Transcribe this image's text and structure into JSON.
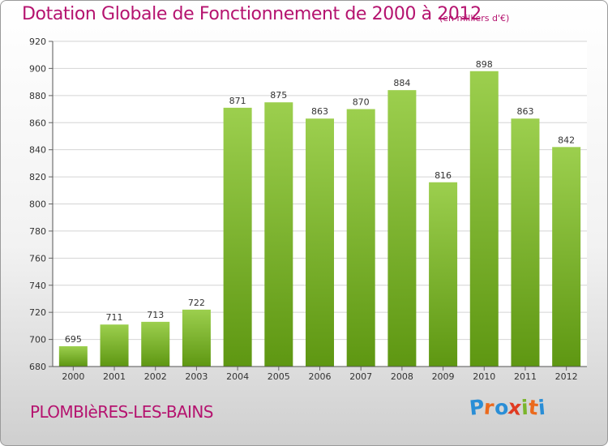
{
  "chart_data": {
    "type": "bar",
    "title": "Dotation Globale de Fonctionnement de 2000 à 2012",
    "unit_note": "(en milliers d'€)",
    "categories": [
      "2000",
      "2001",
      "2002",
      "2003",
      "2004",
      "2005",
      "2006",
      "2007",
      "2008",
      "2009",
      "2010",
      "2011",
      "2012"
    ],
    "values": [
      695,
      711,
      713,
      722,
      871,
      875,
      863,
      870,
      884,
      816,
      898,
      863,
      842
    ],
    "ylim": [
      680,
      920
    ],
    "yticks": [
      680,
      700,
      720,
      740,
      760,
      780,
      800,
      820,
      840,
      860,
      880,
      900,
      920
    ],
    "grid": true,
    "bar_color_top": "#9ccf4e",
    "bar_color_bottom": "#5e9712"
  },
  "footer": {
    "commune": "PLOMBIèRES-LES-BAINS",
    "logo_letters": [
      {
        "ch": "P",
        "color": "#2a8ed6"
      },
      {
        "ch": "r",
        "color": "#eb6a1d"
      },
      {
        "ch": "o",
        "color": "#2a8ed6"
      },
      {
        "ch": "x",
        "color": "#e03b22"
      },
      {
        "ch": "i",
        "color": "#7ab52c"
      },
      {
        "ch": "t",
        "color": "#eb6a1d"
      },
      {
        "ch": "i",
        "color": "#2a8ed6"
      }
    ]
  }
}
